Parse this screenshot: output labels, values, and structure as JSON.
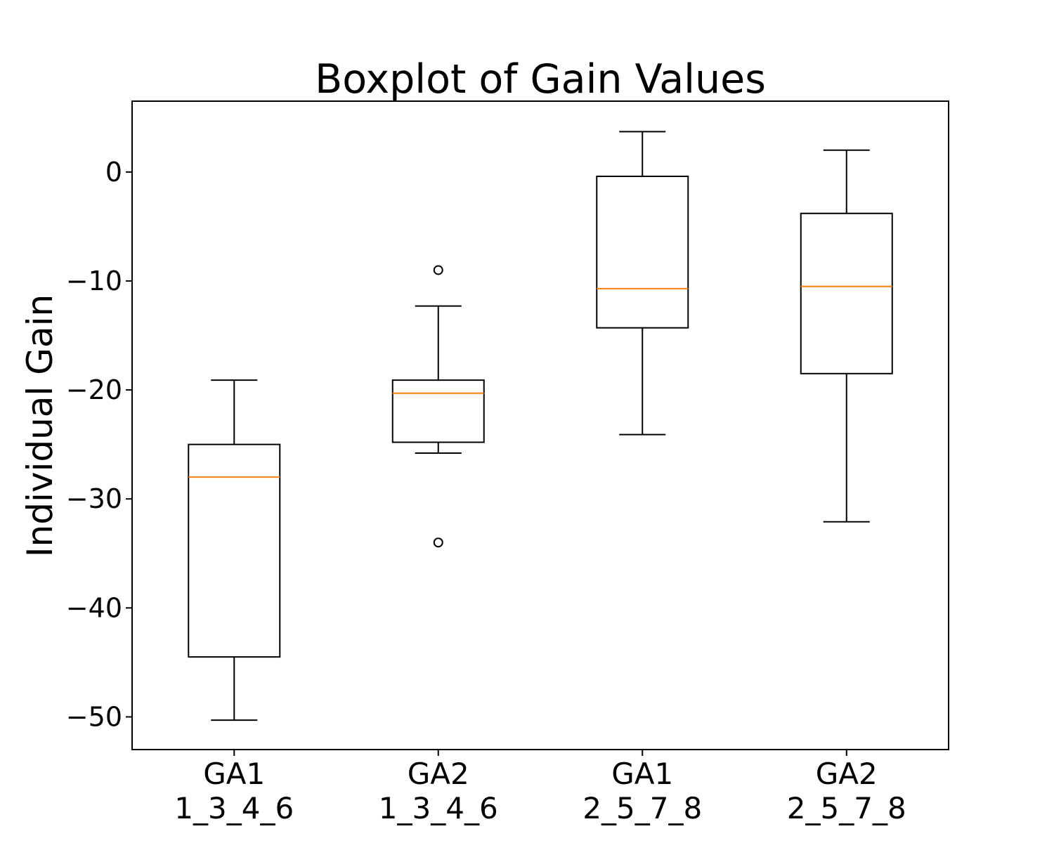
{
  "chart_data": {
    "type": "boxplot",
    "title": "Boxplot of Gain Values",
    "xlabel": "",
    "ylabel": "Individual Gain",
    "ylim": [
      -53,
      6.5
    ],
    "yticks": [
      0,
      -10,
      -20,
      -30,
      -40,
      -50
    ],
    "ytick_labels": [
      "0",
      "−10",
      "−20",
      "−30",
      "−40",
      "−50"
    ],
    "grid": false,
    "colors": {
      "box": "#000000",
      "median": "#ff7f0e",
      "flier": "#000000"
    },
    "categories": [
      {
        "line1": "GA1",
        "line2": "1_3_4_6"
      },
      {
        "line1": "GA2",
        "line2": "1_3_4_6"
      },
      {
        "line1": "GA1",
        "line2": "2_5_7_8"
      },
      {
        "line1": "GA2",
        "line2": "2_5_7_8"
      }
    ],
    "boxes": [
      {
        "whislo": -50.3,
        "q1": -44.5,
        "med": -28.0,
        "q3": -25.0,
        "whishi": -19.1,
        "fliers": []
      },
      {
        "whislo": -25.8,
        "q1": -24.8,
        "med": -20.3,
        "q3": -19.1,
        "whishi": -12.3,
        "fliers": [
          -9.0,
          -34.0
        ]
      },
      {
        "whislo": -24.1,
        "q1": -14.3,
        "med": -10.7,
        "q3": -0.4,
        "whishi": 3.7,
        "fliers": []
      },
      {
        "whislo": -32.1,
        "q1": -18.5,
        "med": -10.5,
        "q3": -3.8,
        "whishi": 2.0,
        "fliers": []
      }
    ]
  }
}
